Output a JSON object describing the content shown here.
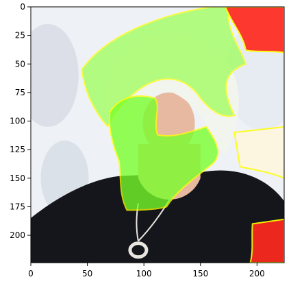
{
  "chart_data": {
    "type": "image",
    "title": "",
    "xlabel": "",
    "ylabel": "",
    "xlim": [
      0,
      224
    ],
    "ylim": [
      224,
      0
    ],
    "x_ticks": [
      0,
      50,
      100,
      150,
      200
    ],
    "y_ticks": [
      0,
      25,
      50,
      75,
      100,
      125,
      150,
      175,
      200
    ],
    "grid": false,
    "legend": "none",
    "image_description_colors": {
      "background_light": "#eef2f6",
      "hair": "#f2f4ee",
      "skin": "#e7b9a0",
      "clothing": "#15161b",
      "necklace": "#e9e6df",
      "overlay_green": "#9cff55",
      "overlay_green_strong": "#77ff2a",
      "overlay_red": "#ff2a1f",
      "overlay_boundary": "#ffff00",
      "overlay_light": "#fff6dc"
    },
    "overlay_regions": [
      {
        "name": "green-hair-region",
        "color": "overlay_green"
      },
      {
        "name": "green-face-neck-region",
        "color": "overlay_green_strong"
      },
      {
        "name": "red-top-right-region",
        "color": "overlay_red"
      },
      {
        "name": "red-bottom-right-region",
        "color": "overlay_red"
      },
      {
        "name": "light-right-region",
        "color": "overlay_light"
      }
    ]
  }
}
